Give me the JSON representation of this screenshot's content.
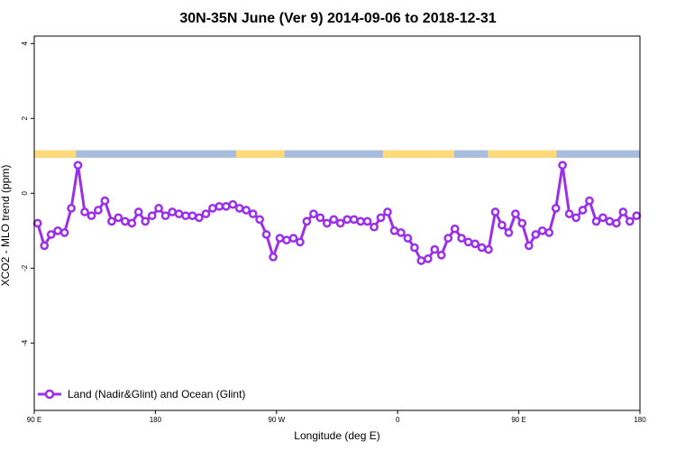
{
  "chart_data": {
    "type": "line",
    "title": "30N-35N June (Ver 9)   2014-09-06 to 2018-12-31",
    "xlabel": "Longitude (deg E)",
    "ylabel": "XCO2 - MLO trend (ppm)",
    "xlim": [
      90,
      540
    ],
    "ylim": [
      -5.8,
      4.2
    ],
    "grid": false,
    "legend_position": "bottom-left",
    "x_ticks": [
      {
        "value": 90,
        "label": "90 E"
      },
      {
        "value": 180,
        "label": "180"
      },
      {
        "value": 270,
        "label": "90 W"
      },
      {
        "value": 360,
        "label": "0"
      },
      {
        "value": 450,
        "label": "90 E"
      },
      {
        "value": 540,
        "label": "180"
      }
    ],
    "y_ticks": [
      {
        "value": 4,
        "label": "4"
      },
      {
        "value": 2,
        "label": "2"
      },
      {
        "value": 0,
        "label": "0"
      },
      {
        "value": -2,
        "label": "-2"
      },
      {
        "value": -4,
        "label": "-4"
      }
    ],
    "land_ocean_band": {
      "y_range": [
        0.95,
        1.15
      ],
      "land_color": "#FFD97A",
      "ocean_color": "#A8BDDC",
      "land_intervals": [
        [
          90,
          121
        ],
        [
          240,
          276
        ],
        [
          349,
          402
        ],
        [
          427,
          478
        ]
      ]
    },
    "series": [
      {
        "name": "Land (Nadir&Glint) and Ocean (Glint)",
        "color": "#9B30E8",
        "x": [
          92.5,
          97.5,
          102.5,
          107.5,
          112.5,
          117.5,
          122.5,
          127.5,
          132.5,
          137.5,
          142.5,
          147.5,
          152.5,
          157.5,
          162.5,
          167.5,
          172.5,
          177.5,
          182.5,
          187.5,
          192.5,
          197.5,
          202.5,
          207.5,
          212.5,
          217.5,
          222.5,
          227.5,
          232.5,
          237.5,
          242.5,
          247.5,
          252.5,
          257.5,
          262.5,
          267.5,
          272.5,
          277.5,
          282.5,
          287.5,
          292.5,
          297.5,
          302.5,
          307.5,
          312.5,
          317.5,
          322.5,
          327.5,
          332.5,
          337.5,
          342.5,
          347.5,
          352.5,
          357.5,
          362.5,
          367.5,
          372.5,
          377.5,
          382.5,
          387.5,
          392.5,
          397.5,
          402.5,
          407.5,
          412.5,
          417.5,
          422.5,
          427.5,
          432.5,
          437.5,
          442.5,
          447.5,
          452.5,
          457.5,
          462.5,
          467.5,
          472.5,
          477.5,
          482.5,
          487.5,
          492.5,
          497.5,
          502.5,
          507.5,
          512.5,
          517.5,
          522.5,
          527.5,
          532.5,
          537.5
        ],
        "y": [
          -0.8,
          -1.4,
          -1.1,
          -1.0,
          -1.05,
          -0.4,
          0.75,
          -0.5,
          -0.6,
          -0.45,
          -0.2,
          -0.75,
          -0.65,
          -0.75,
          -0.8,
          -0.5,
          -0.75,
          -0.6,
          -0.4,
          -0.6,
          -0.5,
          -0.55,
          -0.6,
          -0.6,
          -0.65,
          -0.55,
          -0.4,
          -0.35,
          -0.35,
          -0.3,
          -0.4,
          -0.45,
          -0.55,
          -0.7,
          -1.1,
          -1.7,
          -1.2,
          -1.25,
          -1.2,
          -1.3,
          -0.75,
          -0.55,
          -0.65,
          -0.8,
          -0.7,
          -0.8,
          -0.7,
          -0.7,
          -0.75,
          -0.75,
          -0.9,
          -0.65,
          -0.5,
          -1.0,
          -1.05,
          -1.2,
          -1.45,
          -1.8,
          -1.75,
          -1.5,
          -1.65,
          -1.2,
          -0.95,
          -1.2,
          -1.3,
          -1.35,
          -1.45,
          -1.5,
          -0.5,
          -0.85,
          -1.05,
          -0.55,
          -0.8,
          -1.4,
          -1.1,
          -1.0,
          -1.05,
          -0.4,
          0.75,
          -0.55,
          -0.65,
          -0.45,
          -0.2,
          -0.75,
          -0.65,
          -0.75,
          -0.8,
          -0.5,
          -0.75,
          -0.6
        ]
      }
    ]
  }
}
